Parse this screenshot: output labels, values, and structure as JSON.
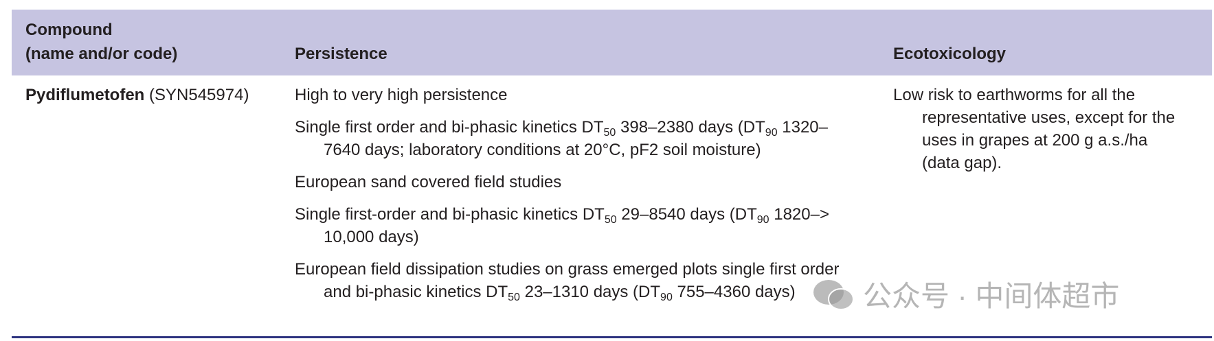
{
  "header": {
    "compound": [
      "Compound",
      "(name and/or code)"
    ],
    "persistence": "Persistence",
    "ecotoxicology": "Ecotoxicology"
  },
  "row": {
    "compound_name": "Pydiflumetofen",
    "compound_code": "(SYN545974)",
    "persistence": [
      {
        "parts": [
          "High to very high persistence"
        ]
      },
      {
        "parts": [
          "Single first order and bi-phasic kinetics DT",
          {
            "sub": "50"
          },
          " 398–2380 days (DT",
          {
            "sub": "90"
          },
          " 1320–7640 days; laboratory conditions at 20°C, pF2 soil moisture)"
        ]
      },
      {
        "parts": [
          "European sand covered field studies"
        ]
      },
      {
        "parts": [
          "Single first-order and bi-phasic kinetics DT",
          {
            "sub": "50"
          },
          " 29–8540 days (DT",
          {
            "sub": "90"
          },
          " 1820–> 10,000 days)"
        ]
      },
      {
        "parts": [
          "European field dissipation studies on grass emerged plots single first order and bi-phasic kinetics DT",
          {
            "sub": "50"
          },
          " 23–1310 days (DT",
          {
            "sub": "90"
          },
          " 755–4360 days)"
        ]
      }
    ],
    "ecotoxicology": "Low risk to earthworms for all the representative uses, except for the uses in grapes at 200 g a.s./ha (data gap)."
  },
  "watermark": "公众号 · 中间体超市"
}
